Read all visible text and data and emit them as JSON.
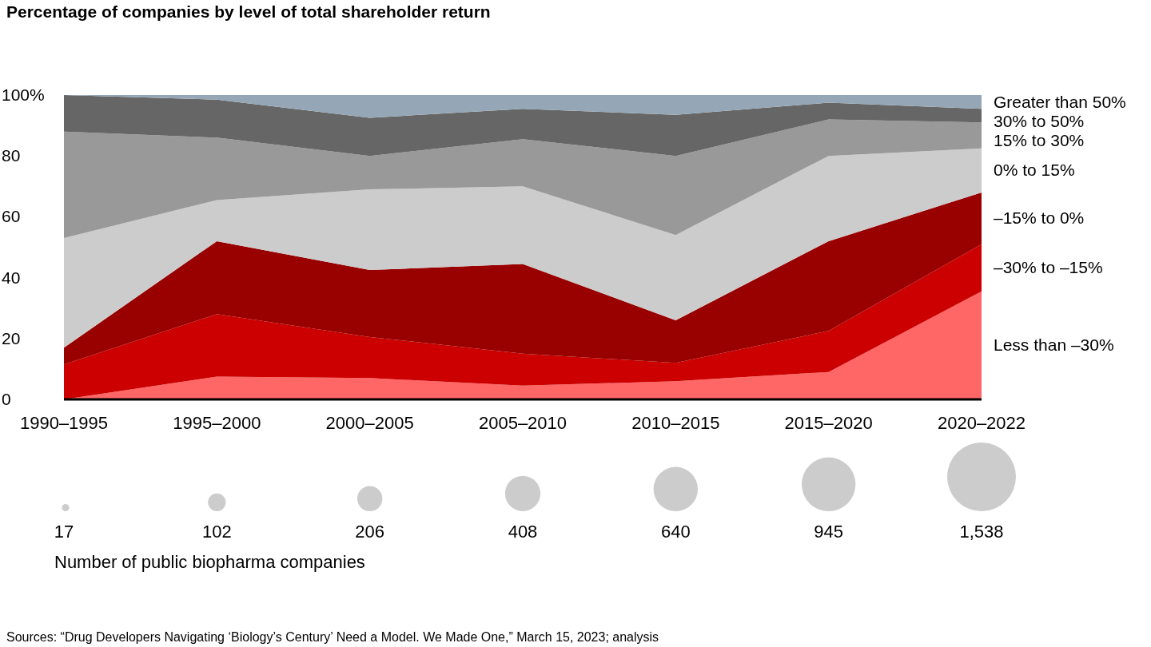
{
  "chart_data": [
    {
      "type": "area",
      "stacked": true,
      "title": "Percentage of companies by level of total shareholder return",
      "categories": [
        "1990–1995",
        "1995–2000",
        "2000–2005",
        "2005–2010",
        "2010–2015",
        "2015–2020",
        "2020–2022"
      ],
      "series": [
        {
          "name": "Less than –30%",
          "color": "#ff6666",
          "values": [
            0,
            7.5,
            7,
            4.5,
            6,
            9,
            35.5
          ]
        },
        {
          "name": "–30% to –15%",
          "color": "#cc0000",
          "values": [
            11.5,
            20.5,
            13.5,
            10.5,
            6,
            13.5,
            15.5
          ]
        },
        {
          "name": "–15% to 0%",
          "color": "#990000",
          "values": [
            5.5,
            24,
            22,
            29.5,
            14,
            29.5,
            17
          ]
        },
        {
          "name": "0% to 15%",
          "color": "#cccccc",
          "values": [
            36,
            13.5,
            26.5,
            25.5,
            28,
            28,
            14.5
          ]
        },
        {
          "name": "15% to 30%",
          "color": "#999999",
          "values": [
            35,
            20.5,
            11,
            15.5,
            26,
            12,
            8.5
          ]
        },
        {
          "name": "30% to 50%",
          "color": "#666666",
          "values": [
            12,
            12.5,
            12.5,
            10,
            13.5,
            5.5,
            4.5
          ]
        },
        {
          "name": "Greater than 50%",
          "color": "#95a7b7",
          "values": [
            0,
            1.5,
            7.5,
            4.5,
            6.5,
            2.5,
            4.5
          ]
        }
      ],
      "ylim": [
        0,
        100
      ],
      "yticks": [
        0,
        20,
        40,
        60,
        80,
        {
          "value": 100,
          "label": "100%"
        }
      ],
      "grid": false,
      "legend": false
    },
    {
      "type": "other",
      "values": [
        17,
        102,
        206,
        408,
        640,
        945,
        1538
      ],
      "value_labels": [
        "17",
        "102",
        "206",
        "408",
        "640",
        "945",
        "1,538"
      ],
      "xlabel": "Number of public biopharma companies",
      "annotations": [
        "Sources: “Drug Developers Navigating ‘Biology’s Century’ Need a Model. We Made One,” March 15, 2023; analysis"
      ]
    }
  ]
}
